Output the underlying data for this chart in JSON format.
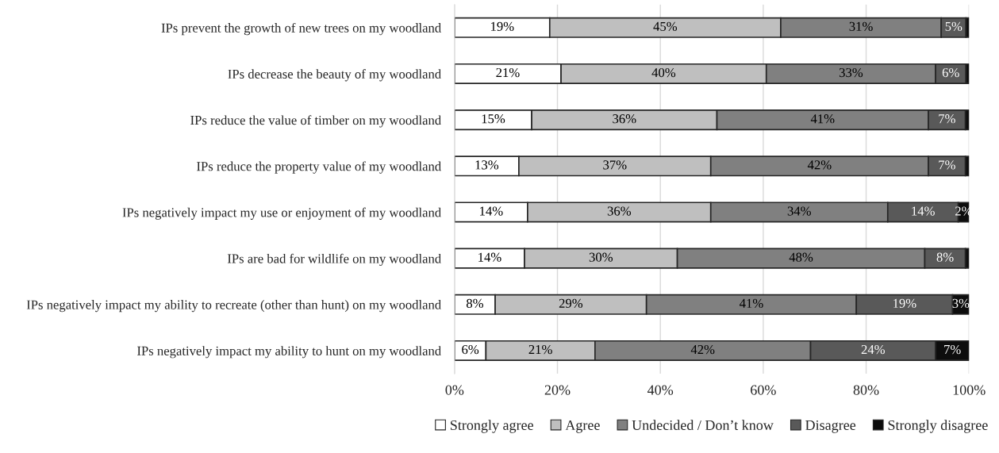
{
  "chart_data": {
    "type": "bar",
    "orientation": "horizontal",
    "stacked": true,
    "categories": [
      "IPs prevent the growth of new trees on my woodland",
      "IPs decrease the beauty of my woodland",
      "IPs reduce the value of timber on my woodland",
      "IPs reduce the property value of my woodland",
      "IPs negatively impact my use or enjoyment of my woodland",
      "IPs are bad for wildlife on my woodland",
      "IPs negatively impact my ability to recreate (other than hunt) on my woodland",
      "IPs negatively impact my ability to hunt on my woodland"
    ],
    "series": [
      {
        "name": "Strongly agree",
        "color": "#ffffff",
        "values": [
          18.5,
          20.7,
          15.0,
          12.5,
          14.2,
          13.6,
          7.9,
          6.1
        ],
        "value_labels": [
          "19%",
          "21%",
          "15%",
          "13%",
          "14%",
          "14%",
          "8%",
          "6%"
        ]
      },
      {
        "name": "Agree",
        "color": "#bfbfbf",
        "values": [
          44.9,
          39.9,
          36.0,
          37.3,
          35.6,
          29.7,
          29.4,
          21.2
        ],
        "value_labels": [
          "45%",
          "40%",
          "36%",
          "37%",
          "36%",
          "30%",
          "29%",
          "21%"
        ]
      },
      {
        "name": "Undecided / Don’t know",
        "color": "#808080",
        "values": [
          31.2,
          32.9,
          41.1,
          42.3,
          34.4,
          48.1,
          40.8,
          41.9
        ],
        "value_labels": [
          "31%",
          "33%",
          "41%",
          "42%",
          "34%",
          "48%",
          "41%",
          "42%"
        ]
      },
      {
        "name": "Disagree",
        "color": "#595959",
        "values": [
          4.8,
          5.9,
          7.2,
          7.2,
          13.7,
          7.9,
          18.7,
          24.3
        ],
        "value_labels": [
          "5%",
          "6%",
          "7%",
          "7%",
          "14%",
          "8%",
          "19%",
          "24%"
        ]
      },
      {
        "name": "Strongly disagree",
        "color": "#0d0d0d",
        "values": [
          0.6,
          0.6,
          0.7,
          0.7,
          2.1,
          0.7,
          3.2,
          6.5
        ],
        "value_labels": [
          null,
          null,
          null,
          null,
          "2%",
          null,
          "3%",
          "7%"
        ]
      }
    ],
    "xlim": [
      0,
      100
    ],
    "xticks": [
      {
        "value": 0,
        "label": "0%"
      },
      {
        "value": 20,
        "label": "20%"
      },
      {
        "value": 40,
        "label": "40%"
      },
      {
        "value": 60,
        "label": "60%"
      },
      {
        "value": 80,
        "label": "80%"
      },
      {
        "value": 100,
        "label": "100%"
      }
    ],
    "grid": "x",
    "legend": "bottom"
  }
}
